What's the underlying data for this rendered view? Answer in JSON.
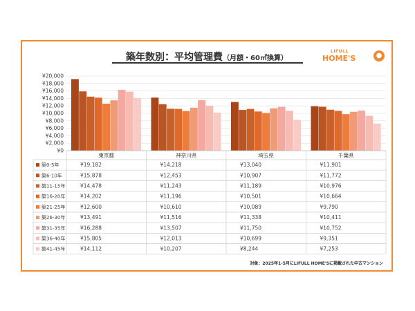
{
  "header": {
    "title": "築年数別：平均管理費",
    "subtitle": "（月額・60㎡換算）",
    "logo_small": "LIFULL",
    "logo_main": "HOME'S"
  },
  "footnote": "対象：2025年1-5月にLIFULL HOME'Sに掲載された中古マンション",
  "colors": {
    "frame": "#f08a30",
    "series": [
      "#a8461a",
      "#b95424",
      "#c8602a",
      "#dd6a2c",
      "#ee7c3a",
      "#f19a78",
      "#f3a8a0",
      "#f6bcb4",
      "#f8ccc4"
    ]
  },
  "chart_data": {
    "type": "bar",
    "categories": [
      "東京都",
      "神奈川県",
      "埼玉県",
      "千葉県"
    ],
    "series": [
      {
        "name": "築0-5年",
        "values": [
          19182,
          14218,
          13040,
          11901
        ],
        "labels": [
          "¥19,182",
          "¥14,218",
          "¥13,040",
          "¥11,901"
        ]
      },
      {
        "name": "築6-10年",
        "values": [
          15878,
          12453,
          10907,
          11772
        ],
        "labels": [
          "¥15,878",
          "¥12,453",
          "¥10,907",
          "¥11,772"
        ]
      },
      {
        "name": "築11-15年",
        "values": [
          14478,
          11243,
          11189,
          10976
        ],
        "labels": [
          "¥14,478",
          "¥11,243",
          "¥11,189",
          "¥10,976"
        ]
      },
      {
        "name": "築16-20年",
        "values": [
          14202,
          11196,
          10501,
          10664
        ],
        "labels": [
          "¥14,202",
          "¥11,196",
          "¥10,501",
          "¥10,664"
        ]
      },
      {
        "name": "築21-25年",
        "values": [
          12600,
          10610,
          10089,
          9790
        ],
        "labels": [
          "¥12,600",
          "¥10,610",
          "¥10,089",
          "¥9,790"
        ]
      },
      {
        "name": "築26-30年",
        "values": [
          13491,
          11516,
          11338,
          10411
        ],
        "labels": [
          "¥13,491",
          "¥11,516",
          "¥11,338",
          "¥10,411"
        ]
      },
      {
        "name": "築31-35年",
        "values": [
          16288,
          13507,
          11750,
          10752
        ],
        "labels": [
          "¥16,288",
          "¥13,507",
          "¥11,750",
          "¥10,752"
        ]
      },
      {
        "name": "築36-40年",
        "values": [
          15805,
          12013,
          10699,
          9351
        ],
        "labels": [
          "¥15,805",
          "¥12,013",
          "¥10,699",
          "¥9,351"
        ]
      },
      {
        "name": "築41-45年",
        "values": [
          14112,
          10207,
          8244,
          7253
        ],
        "labels": [
          "¥14,112",
          "¥10,207",
          "¥8,244",
          "¥7,253"
        ]
      }
    ],
    "y_ticks": [
      "¥0",
      "¥2,000",
      "¥4,000",
      "¥6,000",
      "¥8,000",
      "¥10,000",
      "¥12,000",
      "¥14,000",
      "¥16,000",
      "¥18,000",
      "¥20,000"
    ],
    "ylim": [
      0,
      20000
    ],
    "grid": true,
    "legend": "table-left"
  }
}
